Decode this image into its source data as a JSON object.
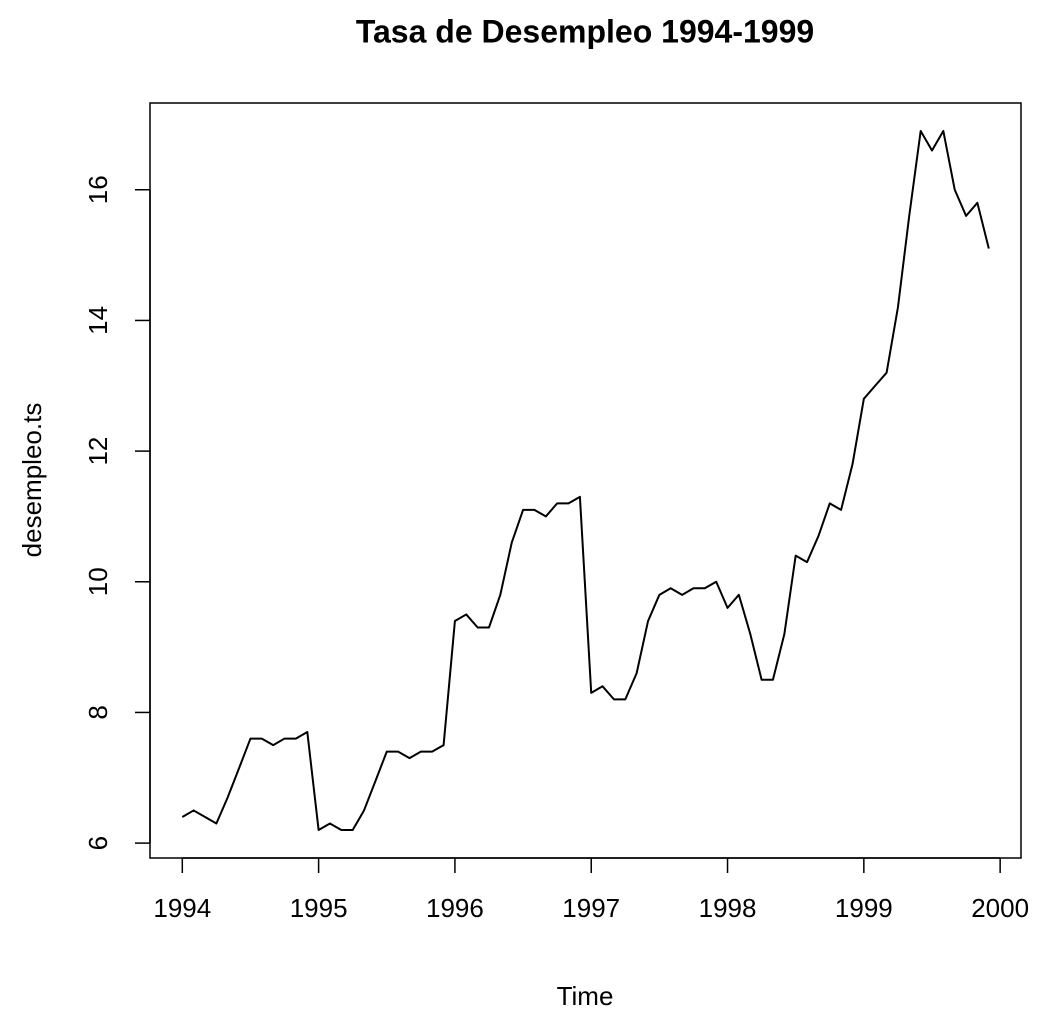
{
  "chart_data": {
    "type": "line",
    "title": "Tasa de Desempleo 1994-1999",
    "xlabel": "Time",
    "ylabel": "desempleo.ts",
    "x": [
      1994,
      1994.083,
      1994.167,
      1994.25,
      1994.333,
      1994.417,
      1994.5,
      1994.583,
      1994.667,
      1994.75,
      1994.833,
      1994.917,
      1995,
      1995.083,
      1995.167,
      1995.25,
      1995.333,
      1995.417,
      1995.5,
      1995.583,
      1995.667,
      1995.75,
      1995.833,
      1995.917,
      1996,
      1996.083,
      1996.167,
      1996.25,
      1996.333,
      1996.417,
      1996.5,
      1996.583,
      1996.667,
      1996.75,
      1996.833,
      1996.917,
      1997,
      1997.083,
      1997.167,
      1997.25,
      1997.333,
      1997.417,
      1997.5,
      1997.583,
      1997.667,
      1997.75,
      1997.833,
      1997.917,
      1998,
      1998.083,
      1998.167,
      1998.25,
      1998.333,
      1998.417,
      1998.5,
      1998.583,
      1998.667,
      1998.75,
      1998.833,
      1998.917,
      1999,
      1999.083,
      1999.167,
      1999.25,
      1999.333,
      1999.417,
      1999.5,
      1999.583,
      1999.667,
      1999.75,
      1999.833,
      1999.917
    ],
    "values": [
      6.4,
      6.5,
      6.4,
      6.3,
      6.7,
      7.15,
      7.6,
      7.6,
      7.5,
      7.6,
      7.6,
      7.7,
      6.2,
      6.3,
      6.2,
      6.2,
      6.5,
      6.95,
      7.4,
      7.4,
      7.3,
      7.4,
      7.4,
      7.5,
      9.4,
      9.5,
      9.3,
      9.3,
      9.8,
      10.6,
      11.1,
      11.1,
      11.0,
      11.2,
      11.2,
      11.3,
      8.3,
      8.4,
      8.2,
      8.2,
      8.6,
      9.4,
      9.8,
      9.9,
      9.8,
      9.9,
      9.9,
      10.0,
      9.6,
      9.8,
      9.2,
      8.5,
      8.5,
      9.2,
      10.4,
      10.3,
      10.7,
      11.2,
      11.1,
      11.8,
      12.8,
      13.0,
      13.2,
      14.2,
      15.6,
      16.9,
      16.6,
      16.9,
      16.0,
      15.6,
      15.8,
      15.1
    ],
    "color": "#000000",
    "xlim": [
      1993.763,
      2000.153
    ],
    "xticks": [
      1994,
      1995,
      1996,
      1997,
      1998,
      1999,
      2000
    ],
    "ylim": [
      5.772,
      17.328
    ],
    "yticks": [
      6,
      8,
      10,
      12,
      14,
      16
    ]
  }
}
